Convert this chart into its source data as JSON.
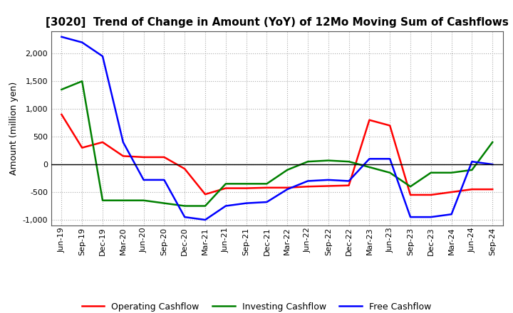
{
  "title": "[3020]  Trend of Change in Amount (YoY) of 12Mo Moving Sum of Cashflows",
  "ylabel": "Amount (million yen)",
  "ylim": [
    -1100,
    2400
  ],
  "yticks": [
    -1000,
    -500,
    0,
    500,
    1000,
    1500,
    2000
  ],
  "x_labels": [
    "Jun-19",
    "Sep-19",
    "Dec-19",
    "Mar-20",
    "Jun-20",
    "Sep-20",
    "Dec-20",
    "Mar-21",
    "Jun-21",
    "Sep-21",
    "Dec-21",
    "Mar-22",
    "Jun-22",
    "Sep-22",
    "Dec-22",
    "Mar-23",
    "Jun-23",
    "Sep-23",
    "Dec-23",
    "Mar-24",
    "Jun-24",
    "Sep-24"
  ],
  "operating": [
    900,
    300,
    400,
    150,
    130,
    130,
    -80,
    -540,
    -430,
    -430,
    -420,
    -420,
    -400,
    -390,
    -380,
    800,
    700,
    -550,
    -550,
    -500,
    -450,
    -450
  ],
  "investing": [
    1350,
    1500,
    -650,
    -650,
    -650,
    -700,
    -750,
    -750,
    -350,
    -350,
    -350,
    -100,
    50,
    70,
    50,
    -50,
    -150,
    -400,
    -150,
    -150,
    -100,
    400
  ],
  "free": [
    2300,
    2200,
    1950,
    400,
    -280,
    -280,
    -950,
    -1000,
    -750,
    -700,
    -680,
    -450,
    -300,
    -280,
    -300,
    100,
    100,
    -950,
    -950,
    -900,
    50,
    0
  ],
  "operating_color": "#ff0000",
  "investing_color": "#008000",
  "free_color": "#0000ff",
  "background_color": "#ffffff",
  "grid_color": "#aaaaaa",
  "title_fontsize": 11,
  "label_fontsize": 9,
  "tick_fontsize": 8
}
